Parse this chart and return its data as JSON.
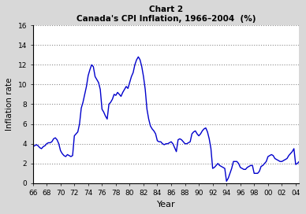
{
  "title_line1": "Chart 2",
  "title_line2": "Canada's CPI Inflation, 1966–2004  (%)",
  "xlabel": "Year",
  "ylabel": "Inflation rate",
  "line_color": "#0000cc",
  "background_color": "#d8d8d8",
  "plot_bg_color": "#ffffff",
  "ylim": [
    0,
    16
  ],
  "yticks": [
    0,
    2,
    4,
    6,
    8,
    10,
    12,
    14,
    16
  ],
  "xlim_start": 1966.0,
  "xlim_end": 2004.5,
  "xtick_positions": [
    1966,
    1968,
    1970,
    1972,
    1974,
    1976,
    1978,
    1980,
    1982,
    1984,
    1986,
    1988,
    1990,
    1992,
    1994,
    1996,
    1998,
    2000,
    2002,
    2004
  ],
  "xtick_labels": [
    "66",
    "68",
    "70",
    "72",
    "74",
    "76",
    "78",
    "80",
    "82",
    "84",
    "86",
    "88",
    "90",
    "92",
    "94",
    "96",
    "98",
    "00",
    "02",
    "04"
  ],
  "years": [
    1966.0,
    1966.25,
    1966.5,
    1966.75,
    1967.0,
    1967.25,
    1967.5,
    1967.75,
    1968.0,
    1968.25,
    1968.5,
    1968.75,
    1969.0,
    1969.25,
    1969.5,
    1969.75,
    1970.0,
    1970.25,
    1970.5,
    1970.75,
    1971.0,
    1971.25,
    1971.5,
    1971.75,
    1972.0,
    1972.25,
    1972.5,
    1972.75,
    1973.0,
    1973.25,
    1973.5,
    1973.75,
    1974.0,
    1974.25,
    1974.5,
    1974.75,
    1975.0,
    1975.25,
    1975.5,
    1975.75,
    1976.0,
    1976.25,
    1976.5,
    1976.75,
    1977.0,
    1977.25,
    1977.5,
    1977.75,
    1978.0,
    1978.25,
    1978.5,
    1978.75,
    1979.0,
    1979.25,
    1979.5,
    1979.75,
    1980.0,
    1980.25,
    1980.5,
    1980.75,
    1981.0,
    1981.25,
    1981.5,
    1981.75,
    1982.0,
    1982.25,
    1982.5,
    1982.75,
    1983.0,
    1983.25,
    1983.5,
    1983.75,
    1984.0,
    1984.25,
    1984.5,
    1984.75,
    1985.0,
    1985.25,
    1985.5,
    1985.75,
    1986.0,
    1986.25,
    1986.5,
    1986.75,
    1987.0,
    1987.25,
    1987.5,
    1987.75,
    1988.0,
    1988.25,
    1988.5,
    1988.75,
    1989.0,
    1989.25,
    1989.5,
    1989.75,
    1990.0,
    1990.25,
    1990.5,
    1990.75,
    1991.0,
    1991.25,
    1991.5,
    1991.75,
    1992.0,
    1992.25,
    1992.5,
    1992.75,
    1993.0,
    1993.25,
    1993.5,
    1993.75,
    1994.0,
    1994.25,
    1994.5,
    1994.75,
    1995.0,
    1995.25,
    1995.5,
    1995.75,
    1996.0,
    1996.25,
    1996.5,
    1996.75,
    1997.0,
    1997.25,
    1997.5,
    1997.75,
    1998.0,
    1998.25,
    1998.5,
    1998.75,
    1999.0,
    1999.25,
    1999.5,
    1999.75,
    2000.0,
    2000.25,
    2000.5,
    2000.75,
    2001.0,
    2001.25,
    2001.5,
    2001.75,
    2002.0,
    2002.25,
    2002.5,
    2002.75,
    2003.0,
    2003.25,
    2003.5,
    2003.75,
    2004.0,
    2004.25,
    2004.5,
    2004.75
  ],
  "values": [
    3.7,
    3.8,
    3.9,
    3.8,
    3.6,
    3.5,
    3.7,
    3.8,
    4.0,
    4.1,
    4.1,
    4.2,
    4.5,
    4.6,
    4.4,
    4.0,
    3.3,
    3.0,
    2.8,
    2.7,
    2.9,
    2.8,
    2.7,
    2.8,
    4.8,
    5.0,
    5.2,
    6.0,
    7.6,
    8.2,
    9.0,
    9.8,
    10.9,
    11.5,
    12.0,
    11.8,
    10.8,
    10.5,
    10.2,
    9.5,
    7.5,
    7.2,
    6.8,
    6.5,
    8.0,
    8.2,
    8.5,
    9.0,
    8.9,
    9.2,
    9.0,
    8.8,
    9.2,
    9.5,
    9.8,
    9.6,
    10.2,
    10.8,
    11.2,
    12.0,
    12.5,
    12.8,
    12.5,
    11.8,
    10.8,
    9.5,
    7.5,
    6.5,
    5.8,
    5.5,
    5.3,
    5.0,
    4.3,
    4.2,
    4.2,
    4.0,
    3.9,
    4.0,
    4.0,
    4.1,
    4.2,
    4.0,
    3.6,
    3.2,
    4.4,
    4.5,
    4.4,
    4.2,
    4.0,
    4.0,
    4.1,
    4.2,
    5.0,
    5.2,
    5.3,
    5.0,
    4.8,
    5.0,
    5.3,
    5.5,
    5.6,
    5.2,
    4.5,
    3.5,
    1.5,
    1.6,
    1.8,
    2.0,
    1.8,
    1.7,
    1.6,
    1.5,
    0.2,
    0.5,
    1.0,
    1.5,
    2.2,
    2.2,
    2.2,
    2.0,
    1.6,
    1.5,
    1.4,
    1.4,
    1.6,
    1.7,
    1.8,
    1.8,
    1.0,
    1.0,
    1.0,
    1.2,
    1.7,
    1.8,
    2.0,
    2.2,
    2.7,
    2.8,
    2.9,
    2.8,
    2.5,
    2.4,
    2.3,
    2.2,
    2.2,
    2.3,
    2.4,
    2.5,
    2.8,
    3.0,
    3.2,
    3.5,
    1.9,
    2.0,
    2.2,
    2.1
  ]
}
